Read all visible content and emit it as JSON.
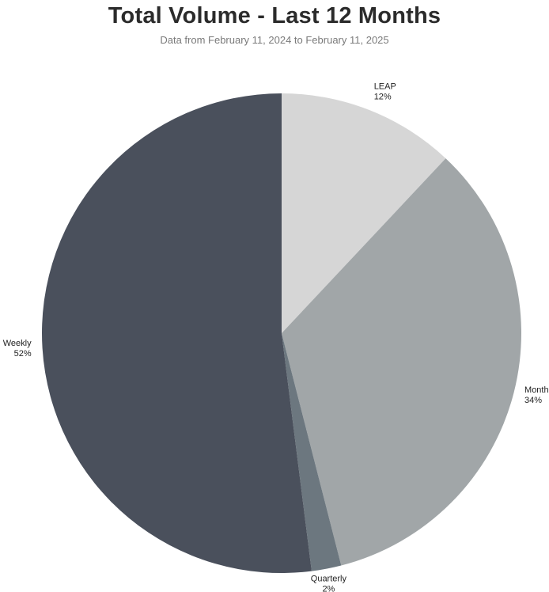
{
  "chart_data": {
    "type": "pie",
    "title": "Total Volume - Last 12 Months",
    "subtitle": "Data from February 11, 2024 to February 11, 2025",
    "start_angle_deg": 0,
    "direction": "clockwise",
    "slices": [
      {
        "label": "LEAP",
        "value": 12,
        "value_label": "12%",
        "color": "#d6d6d6"
      },
      {
        "label": "Monthly",
        "value": 34,
        "value_label": "34%",
        "color": "#a1a6a8"
      },
      {
        "label": "Quarterly",
        "value": 2,
        "value_label": "2%",
        "color": "#6c777f"
      },
      {
        "label": "Weekly",
        "value": 52,
        "value_label": "52%",
        "color": "#4a505c"
      }
    ],
    "legend": "none"
  }
}
